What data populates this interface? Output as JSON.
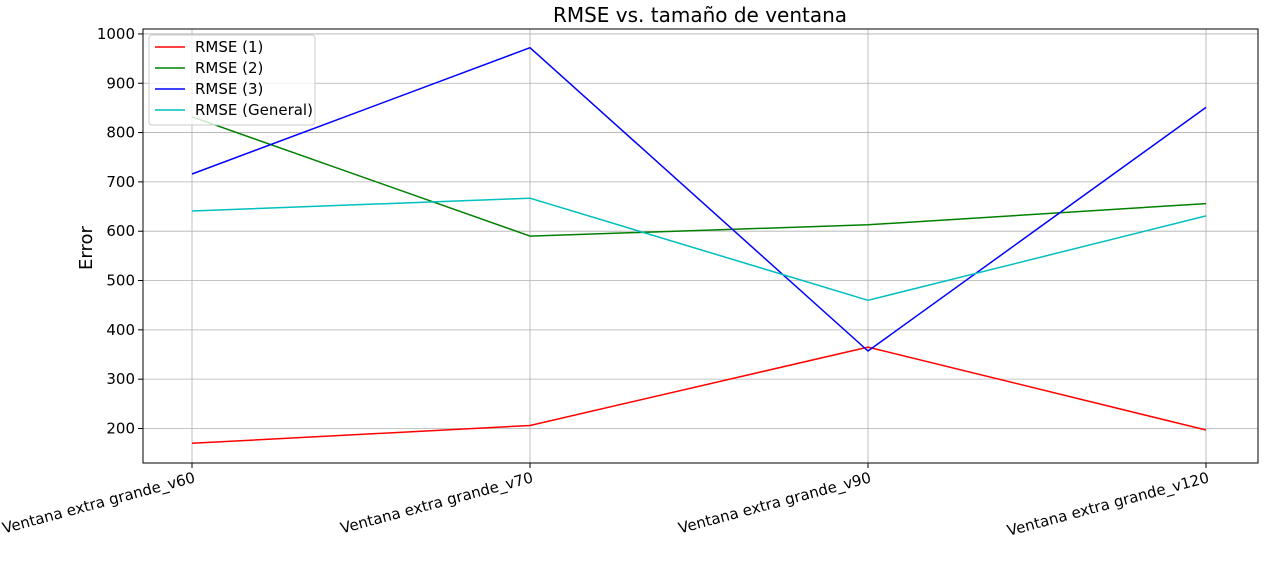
{
  "chart_data": {
    "type": "line",
    "title": "RMSE vs. tamaño de ventana",
    "xlabel": "",
    "ylabel": "Error",
    "categories": [
      "Ventana extra grande_v60",
      "Ventana extra grande_v70",
      "Ventana extra grande_v90",
      "Ventana extra grande_v120"
    ],
    "ylim": [
      130,
      1010
    ],
    "yticks": [
      200,
      300,
      400,
      500,
      600,
      700,
      800,
      900,
      1000
    ],
    "grid": true,
    "legend_position": "top-left",
    "series": [
      {
        "name": "RMSE (1)",
        "color": "#ff0000",
        "values": [
          170,
          206,
          365,
          197
        ]
      },
      {
        "name": "RMSE (2)",
        "color": "#008000",
        "values": [
          832,
          590,
          613,
          656
        ]
      },
      {
        "name": "RMSE (3)",
        "color": "#0000ff",
        "values": [
          716,
          972,
          357,
          851
        ]
      },
      {
        "name": "RMSE (General)",
        "color": "#00bfbf",
        "values": [
          641,
          667,
          460,
          631
        ]
      }
    ]
  }
}
